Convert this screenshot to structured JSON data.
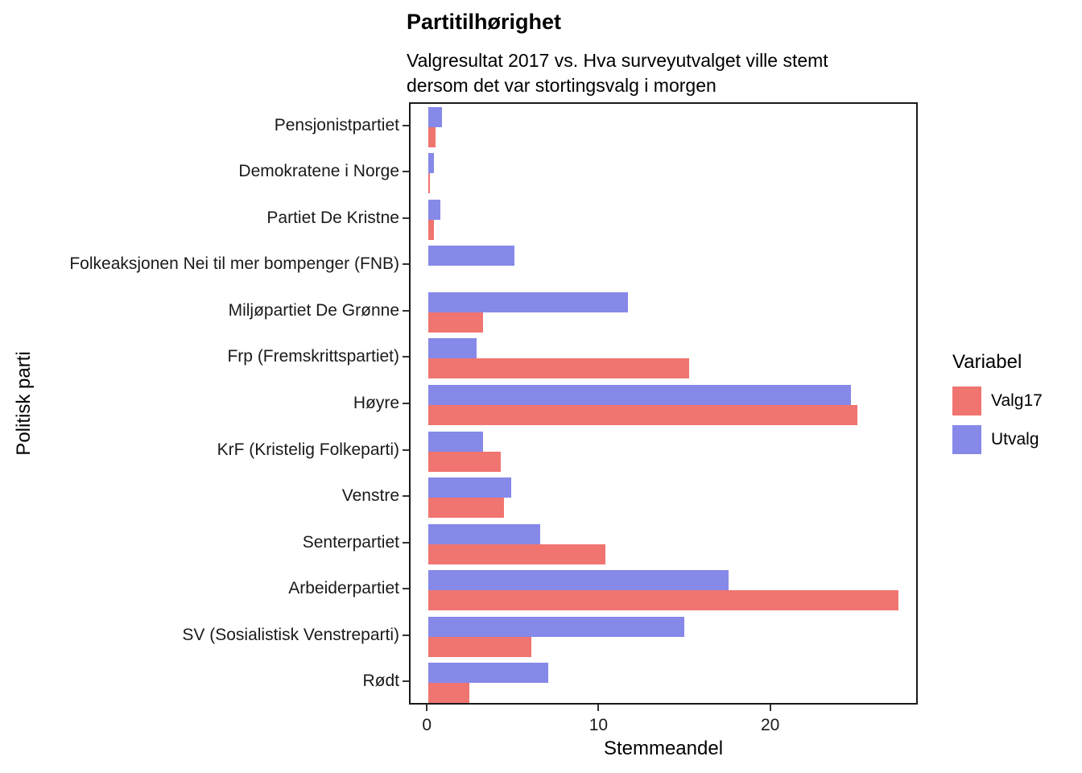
{
  "title": "Partitilhørighet",
  "subtitle_line1": "Valgresultat 2017 vs. Hva surveyutvalget ville stemt",
  "subtitle_line2": "dersom det var stortingsvalg i morgen",
  "xlabel": "Stemmeandel",
  "ylabel": "Politisk parti",
  "legend": {
    "title": "Variabel",
    "entries": [
      {
        "label": "Valg17",
        "color": "#F07470"
      },
      {
        "label": "Utvalg",
        "color": "#8689E8"
      }
    ]
  },
  "chart_data": {
    "type": "bar",
    "orientation": "horizontal",
    "title": "Partitilhørighet",
    "subtitle": "Valgresultat 2017 vs. Hva surveyutvalget ville stemt dersom det var stortingsvalg i morgen",
    "xlabel": "Stemmeandel",
    "ylabel": "Politisk parti",
    "categories": [
      "Pensjonistpartiet",
      "Demokratene i Norge",
      "Partiet De Kristne",
      "Folkeaksjonen Nei til mer bompenger (FNB)",
      "Miljøpartiet De Grønne",
      "Frp (Fremskrittspartiet)",
      "Høyre",
      "KrF (Kristelig Folkeparti)",
      "Venstre",
      "Senterpartiet",
      "Arbeiderpartiet",
      "SV (Sosialistisk Venstreparti)",
      "Rødt"
    ],
    "series": [
      {
        "name": "Utvalg",
        "color": "#8689E8",
        "values": [
          0.8,
          0.3,
          0.7,
          5.0,
          11.6,
          2.8,
          24.6,
          3.2,
          4.8,
          6.5,
          17.5,
          14.9,
          7.0
        ]
      },
      {
        "name": "Valg17",
        "color": "#F07470",
        "values": [
          0.4,
          0.1,
          0.3,
          0.0,
          3.2,
          15.2,
          25.0,
          4.2,
          4.4,
          10.3,
          27.4,
          6.0,
          2.4
        ]
      }
    ],
    "x_ticks": [
      0,
      10,
      20
    ],
    "xlim": [
      -1.04,
      28.6
    ],
    "grid": false,
    "legend_position": "right"
  }
}
